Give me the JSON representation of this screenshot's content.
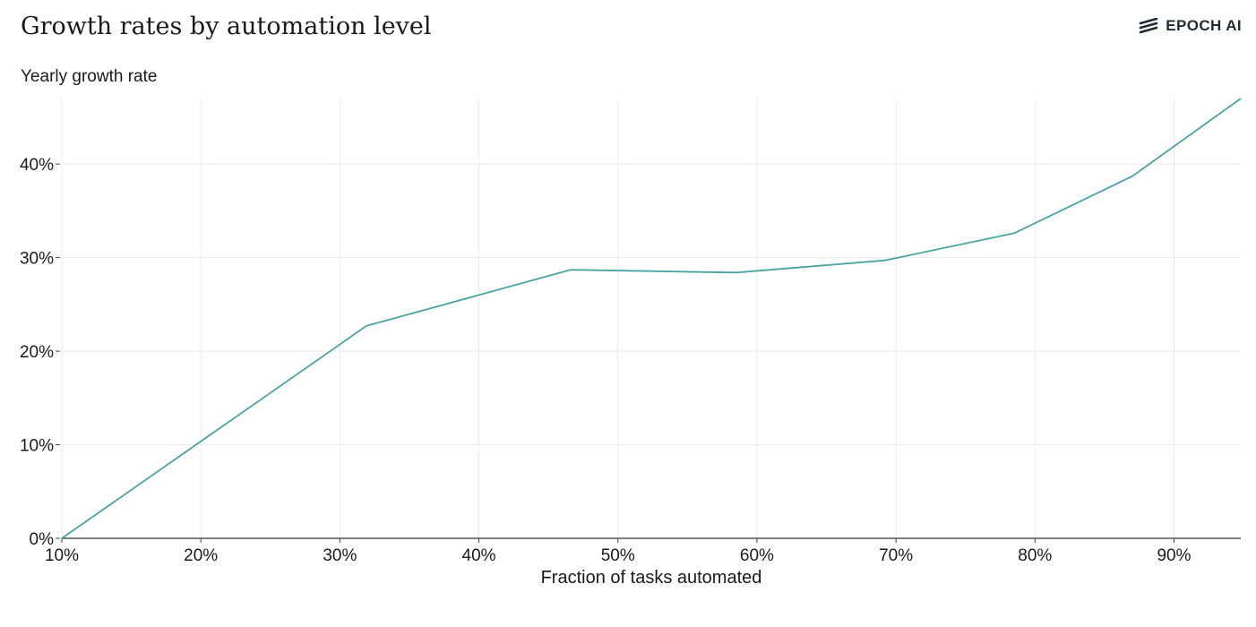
{
  "header": {
    "brand": "EPOCH AI"
  },
  "chart_data": {
    "type": "line",
    "title": "Growth rates by automation level",
    "ylabel": "Yearly growth rate",
    "xlabel": "Fraction of tasks automated",
    "xlim": [
      10,
      94.8
    ],
    "ylim": [
      0,
      47
    ],
    "x_ticks": [
      10,
      20,
      30,
      40,
      50,
      60,
      70,
      80,
      90
    ],
    "x_tick_labels": [
      "10%",
      "20%",
      "30%",
      "40%",
      "50%",
      "60%",
      "70%",
      "80%",
      "90%"
    ],
    "y_ticks": [
      0,
      10,
      20,
      30,
      40
    ],
    "y_tick_labels": [
      "0%",
      "10%",
      "20%",
      "30%",
      "40%"
    ],
    "grid": true,
    "line_color": "#4aa3a3",
    "series": [
      {
        "x": [
          10,
          31.9,
          46.6,
          58.5,
          69.2,
          78.5,
          87.0,
          94.8
        ],
        "y": [
          0,
          22.7,
          28.7,
          28.4,
          29.7,
          32.6,
          38.7,
          47.0
        ]
      }
    ]
  }
}
